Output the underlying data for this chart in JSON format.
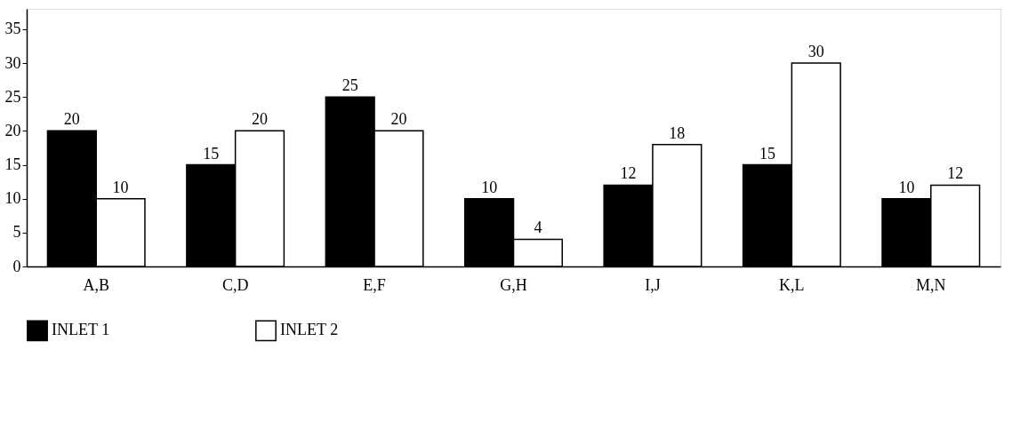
{
  "chart_data": {
    "type": "bar",
    "categories": [
      "A,B",
      "C,D",
      "E,F",
      "G,H",
      "I,J",
      "K,L",
      "M,N"
    ],
    "series": [
      {
        "name": "INLET 1",
        "color": "#000000",
        "values": [
          20,
          15,
          25,
          10,
          12,
          15,
          10
        ]
      },
      {
        "name": "INLET 2",
        "color": "#ffffff",
        "values": [
          10,
          20,
          20,
          4,
          18,
          30,
          12
        ]
      }
    ],
    "ylim": [
      0,
      38
    ],
    "yticks": [
      0,
      5,
      10,
      15,
      20,
      25,
      30,
      35
    ],
    "data_labels": true,
    "grid": false,
    "legend": "bottom"
  }
}
